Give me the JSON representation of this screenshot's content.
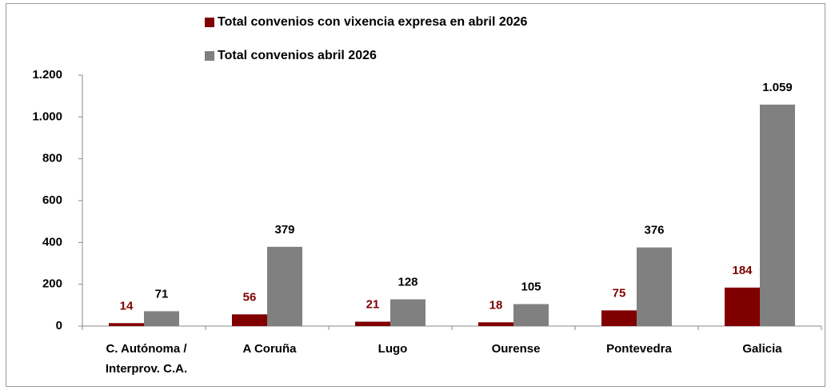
{
  "chart_data": {
    "type": "bar",
    "categories": [
      "C. Autónoma / Interprov. C.A.",
      "A Coruña",
      "Lugo",
      "Ourense",
      "Pontevedra",
      "Galicia"
    ],
    "series": [
      {
        "name": "Total convenios con vixencia expresa en abril 2026",
        "color": "#800000",
        "values": [
          14,
          56,
          21,
          18,
          75,
          184
        ]
      },
      {
        "name": "Total convenios abril 2026",
        "color": "#808080",
        "values": [
          71,
          379,
          128,
          105,
          376,
          1059
        ],
        "value_labels": [
          "71",
          "379",
          "128",
          "105",
          "376",
          "1.059"
        ]
      }
    ],
    "ylim": [
      0,
      1200
    ],
    "yticks": [
      0,
      200,
      400,
      600,
      800,
      {
        "value": 1000,
        "label": "1.000"
      },
      {
        "value": 1200,
        "label": "1.200"
      }
    ],
    "legend": "top"
  }
}
